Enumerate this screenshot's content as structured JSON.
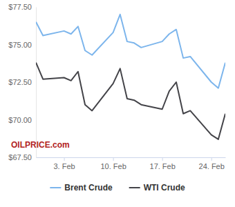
{
  "chart_data": {
    "type": "line",
    "x": [
      -1,
      0,
      3,
      4,
      5,
      6,
      7,
      10,
      11,
      12,
      13,
      14,
      17,
      18,
      19,
      20,
      21,
      24,
      25,
      26
    ],
    "series": [
      {
        "name": "Brent Crude",
        "color": "#7cb5ec",
        "values": [
          76.5,
          75.6,
          75.9,
          75.7,
          76.2,
          74.6,
          74.3,
          75.8,
          77.0,
          75.2,
          75.1,
          74.8,
          75.2,
          75.7,
          76.0,
          74.1,
          74.2,
          72.5,
          72.1,
          73.8
        ]
      },
      {
        "name": "WTI Crude",
        "color": "#434348",
        "values": [
          73.8,
          72.7,
          72.8,
          72.6,
          73.2,
          71.0,
          70.6,
          72.4,
          73.4,
          71.4,
          71.3,
          71.0,
          70.7,
          71.9,
          72.5,
          70.4,
          70.6,
          69.0,
          68.7,
          70.4
        ]
      }
    ],
    "xlim": [
      -1,
      26
    ],
    "xticks": [
      {
        "value": 3,
        "label": "3. Feb"
      },
      {
        "value": 10,
        "label": "10. Feb"
      },
      {
        "value": 17,
        "label": "17. Feb"
      },
      {
        "value": 24,
        "label": "24. Feb"
      }
    ],
    "ylim": [
      67.5,
      77.5
    ],
    "yticks": [
      {
        "value": 67.5,
        "label": "$67.50"
      },
      {
        "value": 70,
        "label": "$70.00"
      },
      {
        "value": 72.5,
        "label": "$72.50"
      },
      {
        "value": 75,
        "label": "$75.00"
      },
      {
        "value": 77.5,
        "label": "$77.50"
      }
    ],
    "grid": false,
    "legend": "bottom",
    "annotations": [
      "OILPRICE.com"
    ]
  }
}
